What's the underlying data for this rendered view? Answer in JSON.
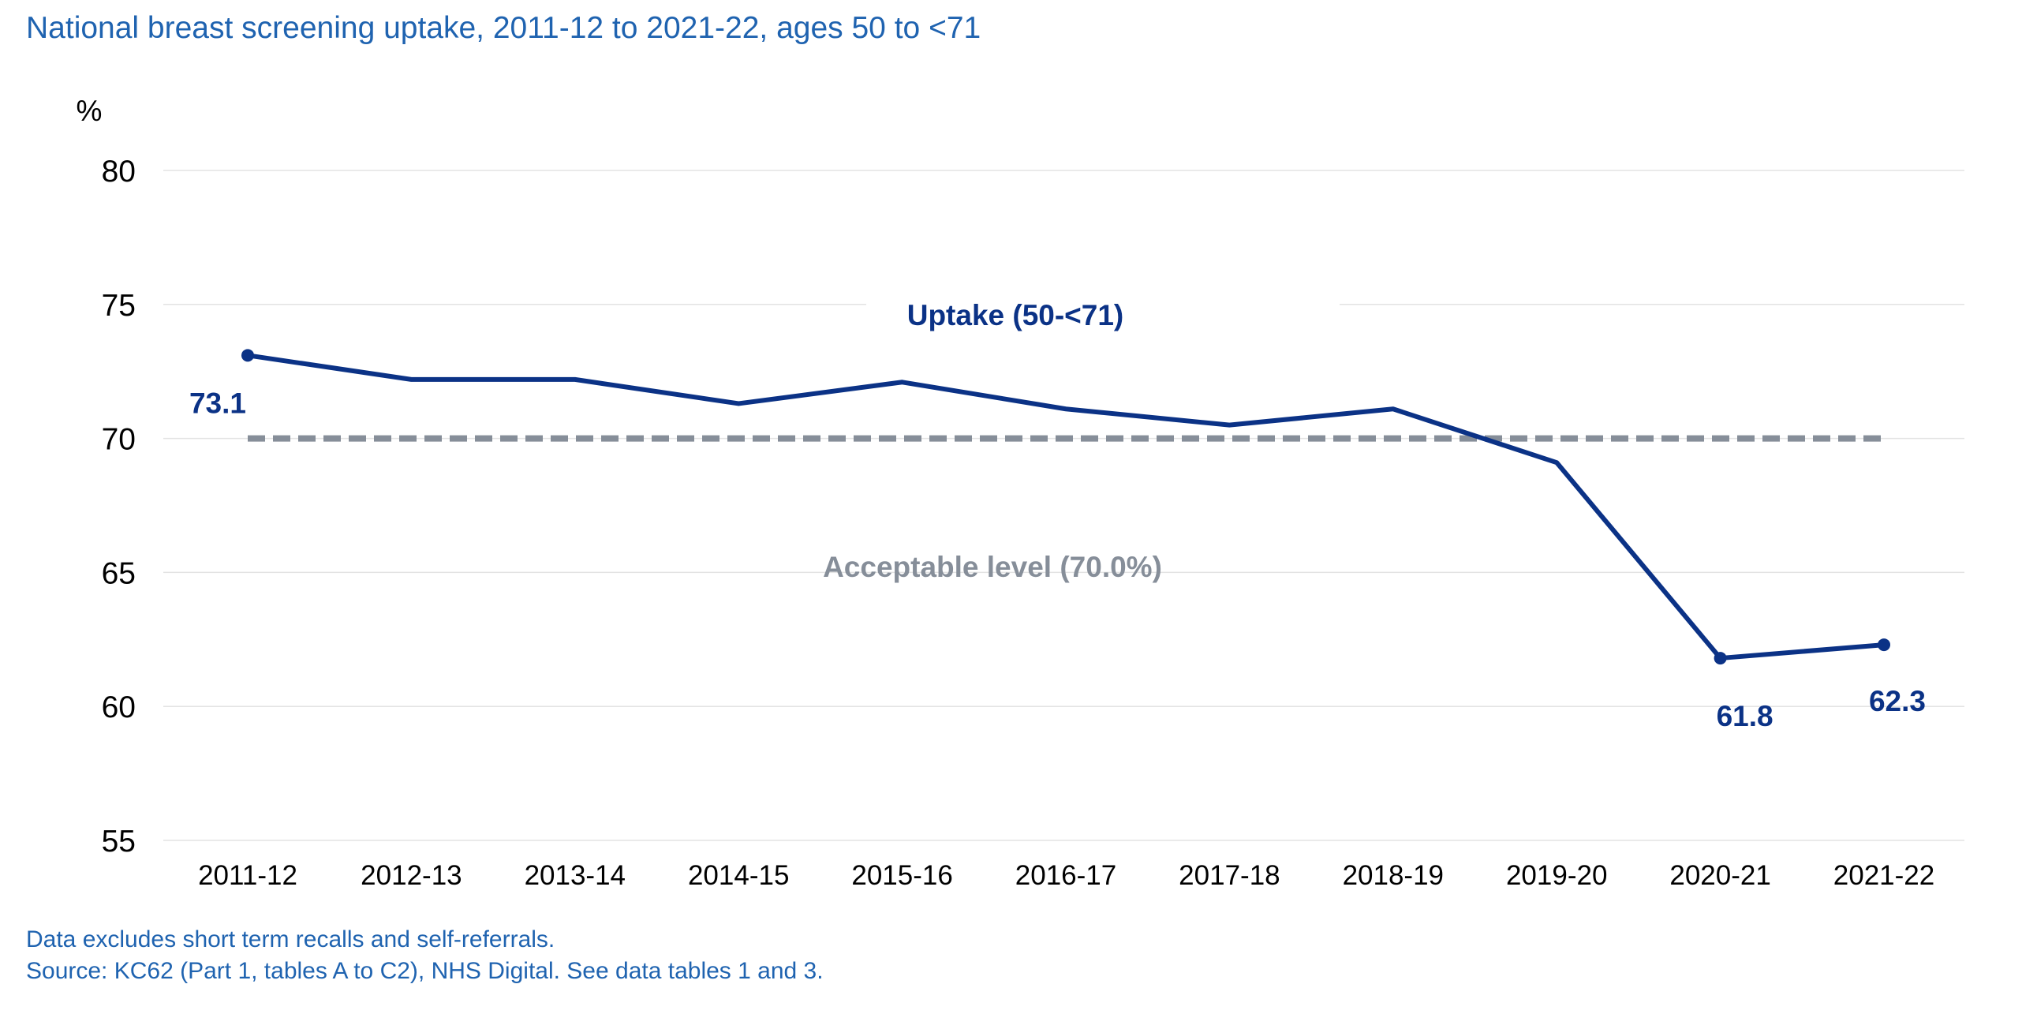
{
  "title": "National breast screening uptake, 2011-12 to 2021-22, ages 50 to <71",
  "footnote": {
    "line1": "Data excludes short term recalls and self-referrals.",
    "line2": "Source: KC62 (Part 1, tables A to C2), NHS Digital. See data tables 1 and 3."
  },
  "colors": {
    "title": "#1f63b0",
    "series": "#0b3286",
    "target": "#868e99",
    "grid": "#e3e3e3"
  },
  "chart_data": {
    "type": "line",
    "ylabel": "%",
    "ylim": [
      55,
      80
    ],
    "yticks": [
      80,
      75,
      70,
      65,
      60,
      55
    ],
    "grid": true,
    "categories": [
      "2011-12",
      "2012-13",
      "2013-14",
      "2014-15",
      "2015-16",
      "2016-17",
      "2017-18",
      "2018-19",
      "2019-20",
      "2020-21",
      "2021-22"
    ],
    "series": [
      {
        "name": "Uptake (50-<71)",
        "values": [
          73.1,
          72.2,
          72.2,
          71.3,
          72.1,
          71.1,
          70.5,
          71.1,
          69.1,
          61.8,
          62.3
        ]
      },
      {
        "name": "Acceptable level (70.0%)",
        "style": "dashed",
        "values": [
          70.0,
          70.0,
          70.0,
          70.0,
          70.0,
          70.0,
          70.0,
          70.0,
          70.0,
          70.0,
          70.0
        ]
      }
    ],
    "data_labels": [
      {
        "category": "2011-12",
        "value": 73.1,
        "text": "73.1"
      },
      {
        "category": "2020-21",
        "value": 61.8,
        "text": "61.8"
      },
      {
        "category": "2021-22",
        "value": 62.3,
        "text": "62.3"
      }
    ]
  }
}
